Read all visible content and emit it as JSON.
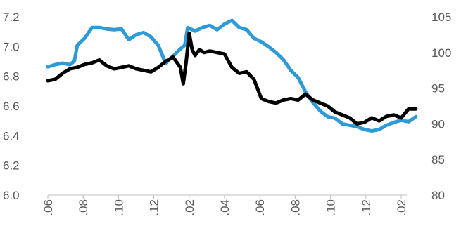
{
  "chart_data": {
    "type": "line",
    "title": "",
    "xlabel": "",
    "ylabel": "",
    "grid": false,
    "legend": "none",
    "x_tick_labels": [
      ".06",
      ".08",
      ".10",
      ".12",
      ".02",
      ".04",
      ".06",
      ".08",
      ".10",
      ".12",
      ".02"
    ],
    "y_left": {
      "lim": [
        6.0,
        7.2
      ],
      "ticks": [
        "6.0",
        "6.2",
        "6.4",
        "6.6",
        "6.8",
        "7.0",
        "7.2"
      ]
    },
    "y_right": {
      "lim": [
        80,
        105
      ],
      "ticks": [
        "80",
        "85",
        "90",
        "95",
        "100",
        "105"
      ]
    },
    "series": [
      {
        "axis": "right",
        "color": "#2E9BD6",
        "x": [
          0,
          0.5,
          1,
          1.5,
          1.8,
          2.0,
          2.5,
          3.0,
          3.5,
          4.0,
          4.5,
          5.0,
          5.5,
          6.0,
          6.5,
          7.0,
          7.5,
          8.0,
          8.5,
          9.0,
          9.3,
          9.5,
          10.0,
          10.5,
          11.0,
          11.5,
          12.0,
          12.5,
          13.0,
          13.5,
          14.0,
          14.5,
          15.0,
          15.5,
          16.0,
          16.5,
          17.0,
          17.5,
          18.0,
          18.5,
          19.0,
          19.5,
          20.0,
          20.5,
          21.0,
          21.5,
          22.0,
          22.5,
          23.0,
          23.5,
          24.0,
          24.5,
          25.0
        ],
        "values": [
          98.0,
          98.3,
          98.5,
          98.3,
          98.8,
          101.0,
          102.0,
          103.5,
          103.5,
          103.3,
          103.2,
          103.3,
          101.8,
          102.5,
          102.8,
          102.2,
          101.0,
          98.5,
          99.5,
          100.5,
          101.0,
          103.5,
          103.0,
          103.5,
          103.8,
          103.2,
          104.0,
          104.5,
          103.5,
          103.2,
          102.0,
          101.5,
          100.8,
          100.0,
          99.0,
          97.5,
          96.5,
          94.5,
          93.0,
          91.8,
          91.0,
          90.8,
          90.0,
          89.8,
          89.6,
          89.2,
          89.0,
          89.2,
          89.8,
          90.2,
          90.5,
          90.3,
          91.0
        ]
      },
      {
        "axis": "left",
        "color": "#000000",
        "x": [
          0,
          0.5,
          1,
          1.5,
          2.0,
          2.5,
          3.0,
          3.5,
          4.0,
          4.5,
          5.0,
          5.5,
          6.0,
          6.5,
          7.0,
          7.5,
          8.0,
          8.5,
          9.0,
          9.2,
          9.4,
          9.6,
          9.8,
          10.0,
          10.3,
          10.6,
          11.0,
          11.5,
          12.0,
          12.5,
          13.0,
          13.5,
          14.0,
          14.5,
          15.0,
          15.5,
          16.0,
          16.5,
          17.0,
          17.5,
          18.0,
          18.5,
          19.0,
          19.5,
          20.0,
          20.5,
          21.0,
          21.5,
          22.0,
          22.5,
          23.0,
          23.5,
          24.0,
          24.5,
          25.0
        ],
        "values": [
          6.77,
          6.78,
          6.82,
          6.85,
          6.86,
          6.88,
          6.89,
          6.91,
          6.87,
          6.85,
          6.86,
          6.87,
          6.85,
          6.84,
          6.83,
          6.86,
          6.9,
          6.93,
          6.86,
          6.75,
          6.9,
          7.09,
          6.98,
          6.94,
          6.98,
          6.96,
          6.97,
          6.96,
          6.95,
          6.86,
          6.82,
          6.83,
          6.78,
          6.65,
          6.63,
          6.62,
          6.64,
          6.65,
          6.64,
          6.68,
          6.64,
          6.62,
          6.6,
          6.56,
          6.54,
          6.52,
          6.48,
          6.49,
          6.52,
          6.5,
          6.53,
          6.54,
          6.52,
          6.58,
          6.58
        ]
      }
    ]
  }
}
